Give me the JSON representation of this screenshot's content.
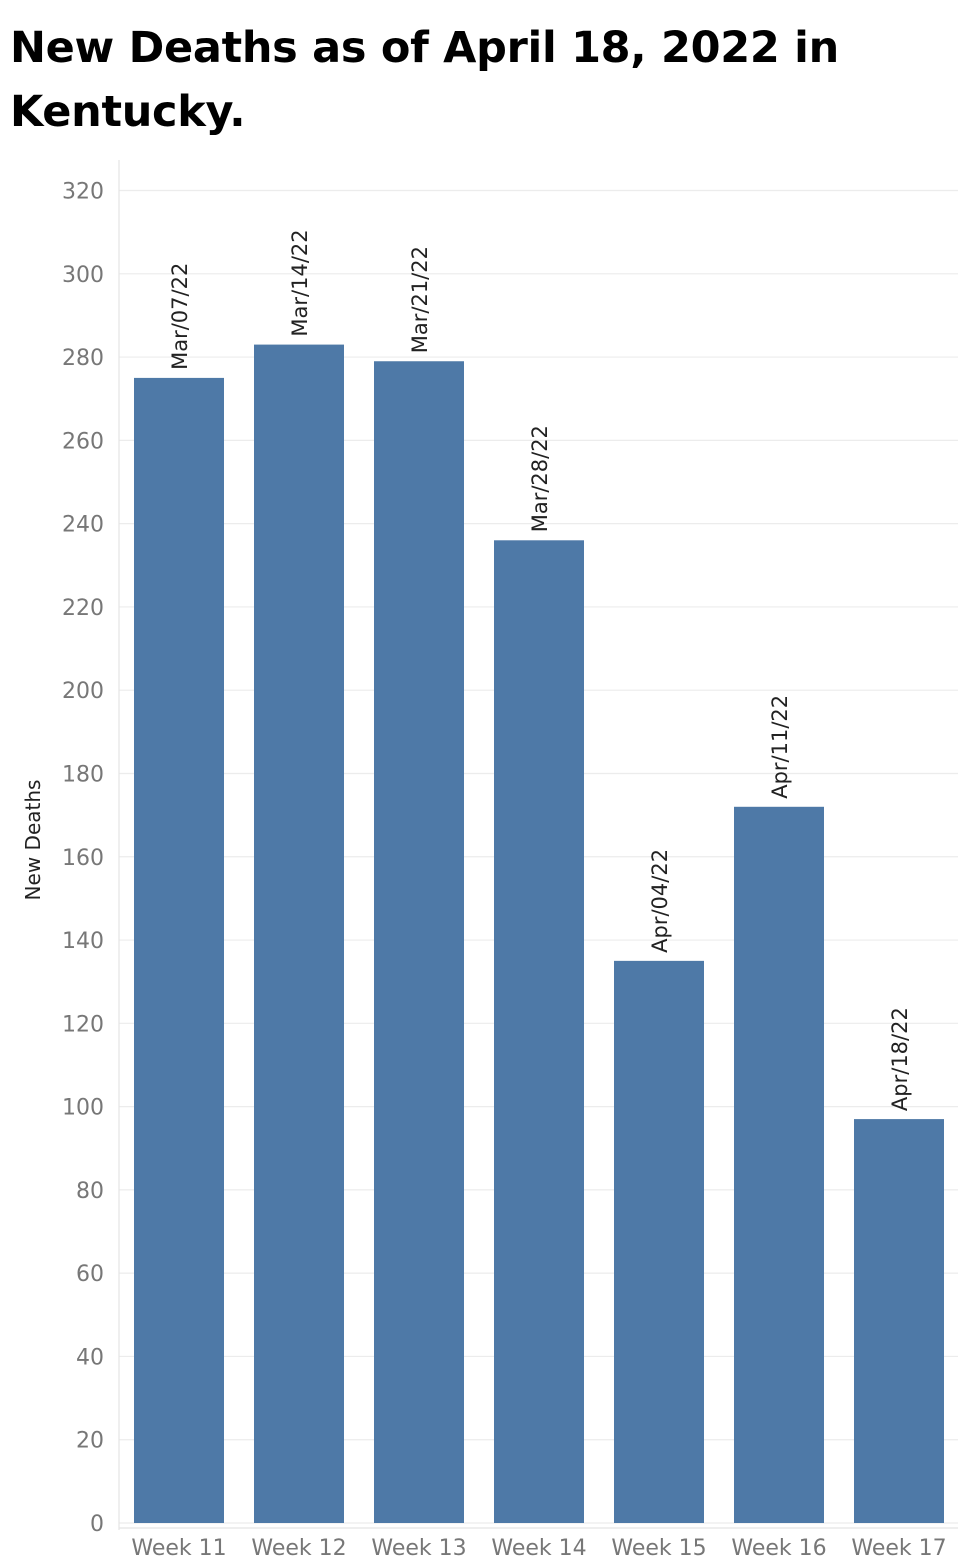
{
  "chart_data": {
    "type": "bar",
    "title": "New Deaths  as of April 18, 2022 in Kentucky.",
    "xlabel": "",
    "ylabel": "New Deaths",
    "ylim": [
      0,
      320
    ],
    "yticks": [
      0,
      20,
      40,
      60,
      80,
      100,
      120,
      140,
      160,
      180,
      200,
      220,
      240,
      260,
      280,
      300,
      320
    ],
    "grid": "horizontal",
    "legend": "none",
    "bar_color": "#4e79a7",
    "categories": [
      "Week 11",
      "Week 12",
      "Week 13",
      "Week 14",
      "Week 15",
      "Week 16",
      "Week 17"
    ],
    "values": [
      275,
      283,
      279,
      236,
      135,
      172,
      97
    ],
    "data_labels": [
      "Mar/07/22",
      "Mar/14/22",
      "Mar/21/22",
      "Mar/28/22",
      "Apr/04/22",
      "Apr/11/22",
      "Apr/18/22"
    ]
  }
}
